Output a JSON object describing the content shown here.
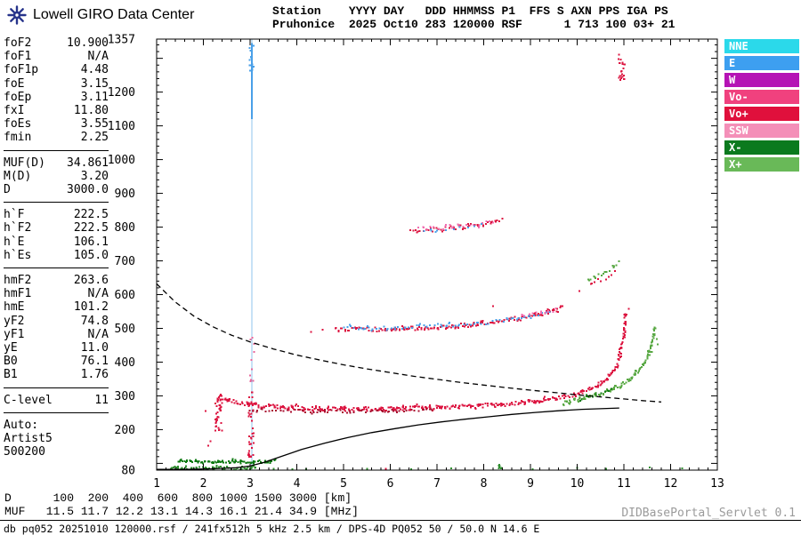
{
  "header": {
    "logo_text": "Lowell GIRO Data Center",
    "line1": "Station    YYYY DAY   DDD HHMMSS P1  FFS S AXN PPS IGA PS",
    "line2": "Pruhonice  2025 Oct10 283 120000 RSF      1 713 100 03+ 21"
  },
  "params": {
    "groups": [
      [
        {
          "label": "foF2",
          "value": "10.900"
        },
        {
          "label": "foF1",
          "value": "N/A"
        },
        {
          "label": "foF1p",
          "value": "4.48"
        },
        {
          "label": "foE",
          "value": "3.15"
        },
        {
          "label": "foEp",
          "value": "3.11"
        },
        {
          "label": "fxI",
          "value": "11.80"
        },
        {
          "label": "foEs",
          "value": "3.55"
        },
        {
          "label": "fmin",
          "value": "2.25"
        }
      ],
      [
        {
          "label": "MUF(D)",
          "value": "34.861"
        },
        {
          "label": "M(D)",
          "value": "3.20"
        },
        {
          "label": "D",
          "value": "3000.0"
        }
      ],
      [
        {
          "label": "h`F",
          "value": "222.5"
        },
        {
          "label": "h`F2",
          "value": "222.5"
        },
        {
          "label": "h`E",
          "value": "106.1"
        },
        {
          "label": "h`Es",
          "value": "105.0"
        }
      ],
      [
        {
          "label": "hmF2",
          "value": "263.6"
        },
        {
          "label": "hmF1",
          "value": "N/A"
        },
        {
          "label": "hmE",
          "value": "101.2"
        },
        {
          "label": "yF2",
          "value": "74.8"
        },
        {
          "label": "yF1",
          "value": "N/A"
        },
        {
          "label": "yE",
          "value": "11.0"
        },
        {
          "label": "B0",
          "value": "76.1"
        },
        {
          "label": "B1",
          "value": "1.76"
        }
      ],
      [
        {
          "label": "C-level",
          "value": "11"
        }
      ]
    ],
    "auto": [
      "Auto:",
      "Artist5",
      "500200"
    ]
  },
  "legend": [
    {
      "label": "NNE",
      "color": "#2bd9ea"
    },
    {
      "label": "E",
      "color": "#3d9ff0"
    },
    {
      "label": "W",
      "color": "#b513b5"
    },
    {
      "label": "Vo-",
      "color": "#f0417e"
    },
    {
      "label": "Vo+",
      "color": "#e0103c"
    },
    {
      "label": "SSW",
      "color": "#f48fb8"
    },
    {
      "label": "X-",
      "color": "#0b7a1e"
    },
    {
      "label": "X+",
      "color": "#69b958"
    }
  ],
  "bottom": {
    "d_row": "D      100  200  400  600  800 1000 1500 3000 [km]",
    "muf_row": "MUF   11.5 11.7 12.2 13.1 14.3 16.1 21.4 34.9 [MHz]"
  },
  "footer": {
    "info": "db pq052 20251010 120000.rsf / 241fx512h 5 kHz 2.5 km / DPS-4D PQ052 50 / 50.0 N 14.6 E",
    "servlet": "DIDBasePortal_Servlet 0.1"
  },
  "chart_data": {
    "type": "scatter",
    "title": "Pruhonice ionogram 2025 Oct10 120000",
    "axes": {
      "x_min": 1,
      "x_max": 13,
      "x_unit": "MHz",
      "y_min": 80,
      "y_max": 1357,
      "y_unit": "km",
      "x_ticks": [
        1,
        2,
        3,
        4,
        5,
        6,
        7,
        8,
        9,
        10,
        11,
        12,
        13
      ],
      "y_ticks": [
        1357,
        1200,
        1100,
        1000,
        900,
        800,
        700,
        600,
        500,
        400,
        300,
        200,
        80
      ]
    },
    "traces": [
      {
        "name": "interference-vline",
        "type": "vline",
        "x": 3.04,
        "y0": 80,
        "y1": 1357,
        "color": "#8fc4ec",
        "w": 1
      },
      {
        "name": "interference-vline-top",
        "type": "vline",
        "x": 3.04,
        "y0": 1120,
        "y1": 1345,
        "color": "#4aa0e8",
        "w": 2
      },
      {
        "name": "interference-top-scatter",
        "type": "cluster",
        "x": 3.03,
        "xs": 0.05,
        "y0": 1260,
        "y1": 1340,
        "n": 16,
        "color": "#4aa0e8"
      },
      {
        "name": "e-layer-low",
        "type": "scatter_path",
        "color": "#2f8f2f",
        "jitter": 2,
        "size": 2,
        "density": 26,
        "pts": [
          [
            1.3,
            87
          ],
          [
            1.8,
            85
          ],
          [
            2.3,
            85
          ],
          [
            2.8,
            86
          ],
          [
            3.15,
            88
          ]
        ]
      },
      {
        "name": "es-trace",
        "type": "scatter_path",
        "color": "#0e7a12",
        "jitter": 1.6,
        "size": 2,
        "density": 26,
        "pts": [
          [
            1.45,
            106
          ],
          [
            1.95,
            105
          ],
          [
            2.45,
            104
          ],
          [
            2.95,
            104
          ],
          [
            3.3,
            105
          ],
          [
            3.55,
            107
          ]
        ]
      },
      {
        "name": "spread-cluster-2.3mhz",
        "type": "cluster",
        "x": 2.33,
        "xs": 0.07,
        "y0": 195,
        "y1": 305,
        "n": 40,
        "color": "#dc1440"
      },
      {
        "name": "spread-cluster-3.0mhz",
        "type": "cluster",
        "x": 3.02,
        "xs": 0.06,
        "y0": 105,
        "y1": 315,
        "n": 36,
        "color": "#dc1440"
      },
      {
        "name": "spread-cluster-3.0mhz-up",
        "type": "cluster",
        "x": 3.05,
        "xs": 0.05,
        "y0": 320,
        "y1": 520,
        "n": 10,
        "color": "#e8669a"
      },
      {
        "name": "es-blob-8.35mhz",
        "type": "cluster",
        "x": 8.35,
        "xs": 0.03,
        "y0": 82,
        "y1": 96,
        "n": 8,
        "color": "#2f8f2f"
      },
      {
        "name": "f-trace-o",
        "type": "scatter_path",
        "color": "#dc1440",
        "jitter": 2.2,
        "size": 2,
        "density": 30,
        "pts": [
          [
            2.35,
            295
          ],
          [
            2.7,
            281
          ],
          [
            3.1,
            272
          ],
          [
            3.6,
            267
          ],
          [
            4.1,
            264
          ],
          [
            4.6,
            262
          ],
          [
            5.1,
            261
          ],
          [
            5.6,
            261
          ],
          [
            6.1,
            262
          ],
          [
            6.6,
            264
          ],
          [
            7.1,
            266
          ],
          [
            7.6,
            269
          ],
          [
            8.1,
            272
          ],
          [
            8.6,
            277
          ],
          [
            9.0,
            282
          ],
          [
            9.4,
            289
          ],
          [
            9.8,
            299
          ],
          [
            10.1,
            311
          ],
          [
            10.4,
            327
          ],
          [
            10.6,
            344
          ],
          [
            10.75,
            364
          ],
          [
            10.85,
            388
          ],
          [
            10.93,
            422
          ],
          [
            10.98,
            460
          ],
          [
            11.02,
            505
          ],
          [
            11.05,
            550
          ]
        ]
      },
      {
        "name": "f-trace-vo-minus",
        "type": "scatter_path",
        "color": "#a81030",
        "jitter": 1.6,
        "size": 2,
        "density": 12,
        "pts": [
          [
            3.0,
            259
          ],
          [
            3.8,
            256
          ],
          [
            4.6,
            254
          ],
          [
            5.4,
            254
          ],
          [
            6.2,
            255
          ],
          [
            7.0,
            258
          ]
        ]
      },
      {
        "name": "f-trace-x",
        "type": "scatter_path",
        "color": "#58a843",
        "jitter": 2.2,
        "size": 2,
        "density": 30,
        "pts": [
          [
            9.7,
            281
          ],
          [
            10.0,
            289
          ],
          [
            10.3,
            299
          ],
          [
            10.6,
            312
          ],
          [
            10.9,
            329
          ],
          [
            11.15,
            352
          ],
          [
            11.35,
            381
          ],
          [
            11.5,
            415
          ],
          [
            11.6,
            455
          ],
          [
            11.67,
            505
          ]
        ]
      },
      {
        "name": "f-trace-x-dark",
        "type": "scatter_path",
        "color": "#0e7a12",
        "jitter": 1.8,
        "size": 2,
        "density": 10,
        "pts": [
          [
            10.1,
            292
          ],
          [
            10.5,
            306
          ],
          [
            10.8,
            322
          ]
        ]
      },
      {
        "name": "second-order-red",
        "type": "scatter_path",
        "color": "#dc1440",
        "jitter": 2.4,
        "size": 2,
        "density": 24,
        "pts": [
          [
            4.85,
            497
          ],
          [
            5.3,
            496
          ],
          [
            5.8,
            496
          ],
          [
            6.3,
            498
          ],
          [
            6.8,
            501
          ],
          [
            7.3,
            506
          ],
          [
            7.8,
            512
          ],
          [
            8.3,
            520
          ],
          [
            8.8,
            530
          ],
          [
            9.2,
            541
          ],
          [
            9.55,
            554
          ],
          [
            9.7,
            562
          ]
        ]
      },
      {
        "name": "second-order-blue",
        "type": "scatter_path",
        "color": "#4aa0e8",
        "jitter": 2,
        "size": 2,
        "density": 12,
        "pts": [
          [
            5.0,
            503
          ],
          [
            5.7,
            502
          ],
          [
            6.4,
            504
          ],
          [
            7.1,
            508
          ],
          [
            7.8,
            514
          ],
          [
            8.5,
            524
          ],
          [
            9.1,
            537
          ],
          [
            9.5,
            550
          ]
        ]
      },
      {
        "name": "second-order-pink",
        "type": "scatter_path",
        "color": "#f06eb0",
        "jitter": 2,
        "size": 2,
        "density": 10,
        "pts": [
          [
            8.8,
            536
          ],
          [
            9.3,
            548
          ],
          [
            9.65,
            561
          ]
        ]
      },
      {
        "name": "second-order-rise-green",
        "type": "scatter_path",
        "color": "#58a843",
        "jitter": 3,
        "size": 2,
        "density": 16,
        "pts": [
          [
            10.25,
            638
          ],
          [
            10.5,
            658
          ],
          [
            10.75,
            680
          ],
          [
            10.95,
            700
          ]
        ]
      },
      {
        "name": "second-order-rise-red",
        "type": "scatter_path",
        "color": "#dc1440",
        "jitter": 3,
        "size": 2,
        "density": 10,
        "pts": [
          [
            10.3,
            628
          ],
          [
            10.6,
            652
          ],
          [
            10.9,
            678
          ]
        ]
      },
      {
        "name": "third-order-red",
        "type": "scatter_path",
        "color": "#dc1440",
        "jitter": 2.4,
        "size": 2,
        "density": 18,
        "pts": [
          [
            6.45,
            789
          ],
          [
            6.9,
            793
          ],
          [
            7.35,
            798
          ],
          [
            7.8,
            805
          ],
          [
            8.2,
            813
          ],
          [
            8.45,
            821
          ]
        ]
      },
      {
        "name": "third-order-pink",
        "type": "scatter_path",
        "color": "#f06eb0",
        "jitter": 2.2,
        "size": 2,
        "density": 10,
        "pts": [
          [
            6.6,
            794
          ],
          [
            7.2,
            800
          ],
          [
            7.8,
            808
          ],
          [
            8.3,
            818
          ]
        ]
      },
      {
        "name": "third-order-blue",
        "type": "scatter_path",
        "color": "#4aa0e8",
        "jitter": 2,
        "size": 2,
        "density": 5,
        "pts": [
          [
            6.7,
            790
          ],
          [
            7.5,
            799
          ],
          [
            8.1,
            810
          ]
        ]
      },
      {
        "name": "top-right-cluster",
        "type": "cluster",
        "x": 10.95,
        "xs": 0.07,
        "y0": 1235,
        "y1": 1315,
        "n": 22,
        "color": "#dc1440"
      },
      {
        "name": "bottom-noise-green",
        "type": "points",
        "color": "#2f8f2f",
        "size": 2,
        "pts": [
          [
            3.5,
            84
          ],
          [
            3.9,
            83
          ],
          [
            4.2,
            83
          ],
          [
            5.5,
            84
          ],
          [
            6.45,
            83
          ],
          [
            7.3,
            85
          ],
          [
            9.05,
            83
          ],
          [
            10.0,
            86
          ],
          [
            10.62,
            84
          ],
          [
            11.55,
            88
          ],
          [
            12.25,
            85
          ]
        ]
      },
      {
        "name": "noise-red",
        "type": "points",
        "color": "#dc1440",
        "size": 2,
        "pts": [
          [
            4.3,
            489
          ],
          [
            4.55,
            496
          ],
          [
            2.1,
            152
          ],
          [
            2.15,
            166
          ],
          [
            8.2,
            566
          ],
          [
            10.05,
            610
          ],
          [
            11.1,
            558
          ],
          [
            5.9,
            84
          ],
          [
            2.05,
            255
          ]
        ]
      },
      {
        "name": "noise-green-right",
        "type": "points",
        "color": "#58a843",
        "size": 2,
        "pts": [
          [
            11.7,
            468
          ],
          [
            11.72,
            452
          ],
          [
            11.6,
            430
          ]
        ]
      },
      {
        "name": "true-height-profile",
        "type": "line",
        "dashed": false,
        "color": "#000000",
        "w": 1.3,
        "pts": [
          [
            1.0,
            82
          ],
          [
            1.6,
            82
          ],
          [
            2.2,
            84
          ],
          [
            2.7,
            87
          ],
          [
            3.0,
            92
          ],
          [
            3.3,
            103
          ],
          [
            3.7,
            122
          ],
          [
            4.1,
            141
          ],
          [
            4.6,
            160
          ],
          [
            5.1,
            177
          ],
          [
            5.6,
            191
          ],
          [
            6.1,
            203
          ],
          [
            6.6,
            214
          ],
          [
            7.1,
            223
          ],
          [
            7.6,
            231
          ],
          [
            8.1,
            238
          ],
          [
            8.6,
            245
          ],
          [
            9.1,
            251
          ],
          [
            9.6,
            256
          ],
          [
            10.1,
            260
          ],
          [
            10.5,
            262
          ],
          [
            10.9,
            264
          ]
        ]
      },
      {
        "name": "muf-transmission-curve",
        "type": "line",
        "dashed": true,
        "color": "#000000",
        "w": 1.3,
        "pts": [
          [
            1.0,
            632
          ],
          [
            1.4,
            578
          ],
          [
            1.8,
            536
          ],
          [
            2.2,
            505
          ],
          [
            2.6,
            480
          ],
          [
            3.0,
            460
          ],
          [
            3.5,
            439
          ],
          [
            4.0,
            421
          ],
          [
            4.5,
            406
          ],
          [
            5.0,
            392
          ],
          [
            5.5,
            380
          ],
          [
            6.0,
            369
          ],
          [
            6.5,
            358
          ],
          [
            7.0,
            349
          ],
          [
            7.5,
            340
          ],
          [
            8.0,
            332
          ],
          [
            8.5,
            324
          ],
          [
            9.0,
            317
          ],
          [
            9.5,
            310
          ],
          [
            10.0,
            303
          ],
          [
            10.5,
            297
          ],
          [
            11.0,
            291
          ],
          [
            11.4,
            286
          ],
          [
            11.8,
            282
          ]
        ]
      }
    ]
  }
}
